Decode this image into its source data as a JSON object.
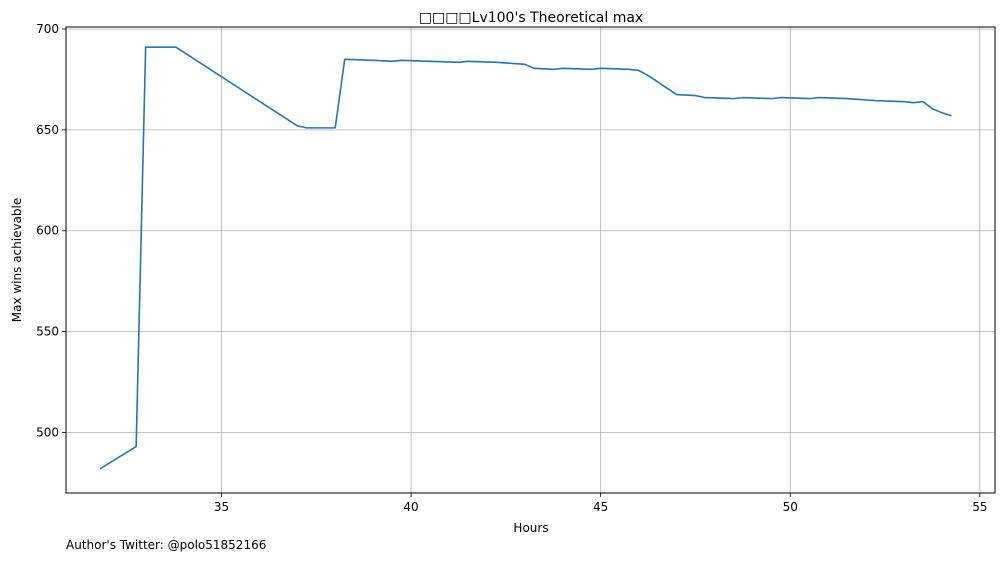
{
  "chart_data": {
    "type": "line",
    "title": "□□□□Lv100's Theoretical max",
    "xlabel": "Hours",
    "ylabel": "Max wins achievable",
    "xlim": [
      30.9,
      55.4
    ],
    "ylim": [
      470,
      701
    ],
    "xticks": [
      35,
      40,
      45,
      50,
      55
    ],
    "yticks": [
      500,
      550,
      600,
      650,
      700
    ],
    "grid": true,
    "line_color": "#1f77b4",
    "series": [
      {
        "x": [
          31.8,
          32.75,
          33.0,
          33.8,
          37.0,
          37.25,
          38.0,
          38.25,
          39.0,
          39.5,
          39.75,
          40.5,
          41.25,
          41.5,
          42.25,
          43.0,
          43.25,
          43.75,
          44.0,
          44.75,
          45.0,
          45.75,
          46.0,
          46.25,
          47.0,
          47.5,
          47.75,
          48.5,
          48.75,
          49.5,
          49.75,
          50.5,
          50.75,
          51.5,
          52.25,
          53.0,
          53.25,
          53.5,
          53.75,
          54.0,
          54.25
        ],
        "y": [
          482,
          493,
          691,
          691,
          652,
          651,
          651,
          685,
          684.5,
          684,
          684.5,
          684,
          683.5,
          684,
          683.5,
          682.5,
          680.5,
          680,
          680.5,
          680,
          680.5,
          680,
          679.5,
          677,
          667.5,
          667,
          666,
          665.5,
          666,
          665.5,
          666,
          665.5,
          666,
          665.5,
          664.5,
          664,
          663.5,
          664,
          660.5,
          658.5,
          657
        ]
      }
    ]
  },
  "footer": {
    "text": "Author's Twitter: @polo51852166"
  }
}
